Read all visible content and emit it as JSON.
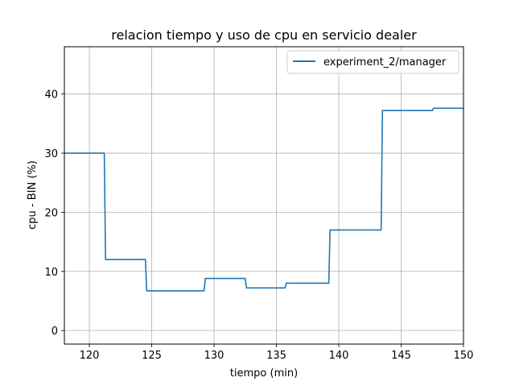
{
  "chart_data": {
    "type": "line",
    "title": "relacion tiempo y uso de cpu en servicio dealer",
    "xlabel": "tiempo (min)",
    "ylabel": "cpu - BIN (%)",
    "xlim": [
      118,
      150
    ],
    "ylim": [
      -2.3,
      48
    ],
    "xticks": [
      120,
      125,
      130,
      135,
      140,
      145,
      150
    ],
    "yticks": [
      0,
      10,
      20,
      30,
      40
    ],
    "grid": true,
    "legend_position": "top-right",
    "series": [
      {
        "name": "experiment_2/manager",
        "color": "#1f77b4",
        "x": [
          118,
          121.2,
          121.3,
          124.5,
          124.6,
          129.2,
          129.3,
          132.5,
          132.6,
          135.7,
          135.8,
          139.2,
          139.3,
          143.4,
          143.5,
          147.5,
          147.6,
          150
        ],
        "y": [
          30,
          30,
          12,
          12,
          6.7,
          6.7,
          8.8,
          8.8,
          7.2,
          7.2,
          8,
          8,
          17,
          17,
          37.2,
          37.2,
          37.6,
          37.6
        ]
      }
    ]
  }
}
